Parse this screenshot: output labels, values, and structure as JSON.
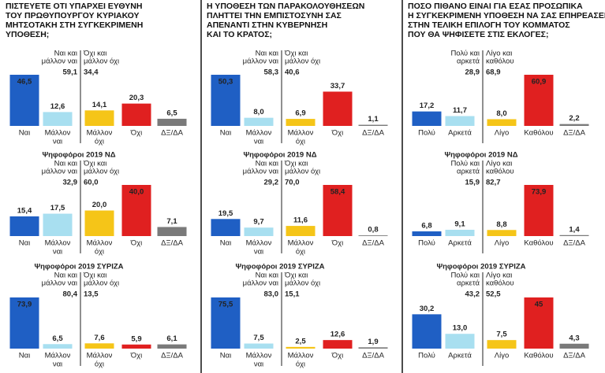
{
  "chart_data": [
    {
      "type": "bar",
      "title": [
        "ΠΙΣΤΕΥΕΤΕ ΟΤΙ ΥΠΑΡΧΕΙ ΕΥΘΥΝΗ",
        "ΤΟΥ ΠΡΩΘΥΠΟΥΡΓΟΥ ΚΥΡΙΑΚΟΥ",
        "ΜΗΤΣΟΤΑΚΗ ΣΤΗ ΣΥΓΚΕΚΡΙΜΕΝΗ",
        "ΥΠΟΘΕΣΗ;"
      ],
      "categories": [
        [
          "Ναι"
        ],
        [
          "Μάλλον",
          "ναι"
        ],
        [
          "Μάλλον",
          "όχι"
        ],
        [
          "Όχι"
        ],
        [
          "ΔΞ/ΔΑ"
        ]
      ],
      "values": [
        46.5,
        12.6,
        14.1,
        20.3,
        6.5
      ],
      "value_labels": [
        "46,5",
        "12,6",
        "14,1",
        "20,3",
        "6,5"
      ],
      "colors": [
        "#1f5fc4",
        "#a8dff0",
        "#f5c518",
        "#e02020",
        "#7a7a7a"
      ],
      "summaries": [
        {
          "label": [
            "Ναι και",
            "μάλλον ναι"
          ],
          "value": 59.1,
          "value_label": "59,1"
        },
        {
          "label": [
            "Όχι και",
            "μάλλον όχι"
          ],
          "value": 34.4,
          "value_label": "34,4"
        }
      ]
    },
    {
      "type": "bar",
      "subtitle": "Ψηφοφόροι 2019 ΝΔ",
      "categories": [
        [
          "Ναι"
        ],
        [
          "Μάλλον",
          "ναι"
        ],
        [
          "Μάλλον",
          "όχι"
        ],
        [
          "Όχι"
        ],
        [
          "ΔΞ/ΔΑ"
        ]
      ],
      "values": [
        15.4,
        17.5,
        20.0,
        40.0,
        7.1
      ],
      "value_labels": [
        "15,4",
        "17,5",
        "20,0",
        "40,0",
        "7,1"
      ],
      "colors": [
        "#1f5fc4",
        "#a8dff0",
        "#f5c518",
        "#e02020",
        "#7a7a7a"
      ],
      "summaries": [
        {
          "label": [
            "Ναι και",
            "μάλλον ναι"
          ],
          "value": 32.9,
          "value_label": "32,9"
        },
        {
          "label": [
            "Όχι και",
            "μάλλον όχι"
          ],
          "value": 60.0,
          "value_label": "60,0"
        }
      ]
    },
    {
      "type": "bar",
      "subtitle": "Ψηφοφόροι 2019 ΣΥΡΙΖΑ",
      "categories": [
        [
          "Ναι"
        ],
        [
          "Μάλλον",
          "ναι"
        ],
        [
          "Μάλλον",
          "όχι"
        ],
        [
          "Όχι"
        ],
        [
          "ΔΞ/ΔΑ"
        ]
      ],
      "values": [
        73.9,
        6.5,
        7.6,
        5.9,
        6.1
      ],
      "value_labels": [
        "73,9",
        "6,5",
        "7,6",
        "5,9",
        "6,1"
      ],
      "colors": [
        "#1f5fc4",
        "#a8dff0",
        "#f5c518",
        "#e02020",
        "#7a7a7a"
      ],
      "summaries": [
        {
          "label": [
            "Ναι και",
            "μάλλον ναι"
          ],
          "value": 80.4,
          "value_label": "80,4"
        },
        {
          "label": [
            "Όχι και",
            "μάλλον όχι"
          ],
          "value": 13.5,
          "value_label": "13,5"
        }
      ]
    },
    {
      "type": "bar",
      "title": [
        "Η ΥΠΟΘΕΣΗ ΤΩΝ ΠΑΡΑΚΟΛΟΥΘΗΣΕΩΝ",
        "ΠΛΗΤΤΕΙ ΤΗΝ ΕΜΠΙΣΤΟΣΥΝΗ ΣΑΣ",
        "ΑΠΕΝΑΝΤΙ ΣΤΗΝ ΚΥΒΕΡΝΗΣΗ",
        "ΚΑΙ ΤΟ ΚΡΑΤΟΣ;"
      ],
      "categories": [
        [
          "Ναι"
        ],
        [
          "Μάλλον",
          "ναι"
        ],
        [
          "Μάλλον",
          "όχι"
        ],
        [
          "Όχι"
        ],
        [
          "ΔΞ/ΔΑ"
        ]
      ],
      "values": [
        50.3,
        8.0,
        6.9,
        33.7,
        1.1
      ],
      "value_labels": [
        "50,3",
        "8,0",
        "6,9",
        "33,7",
        "1,1"
      ],
      "colors": [
        "#1f5fc4",
        "#a8dff0",
        "#f5c518",
        "#e02020",
        "#7a7a7a"
      ],
      "summaries": [
        {
          "label": [
            "Ναι και",
            "μάλλον ναι"
          ],
          "value": 58.3,
          "value_label": "58,3"
        },
        {
          "label": [
            "Όχι και",
            "μάλλον όχι"
          ],
          "value": 40.6,
          "value_label": "40,6"
        }
      ]
    },
    {
      "type": "bar",
      "subtitle": "Ψηφοφόροι 2019 ΝΔ",
      "categories": [
        [
          "Ναι"
        ],
        [
          "Μάλλον",
          "ναι"
        ],
        [
          "Μάλλον",
          "όχι"
        ],
        [
          "Όχι"
        ],
        [
          "ΔΞ/ΔΑ"
        ]
      ],
      "values": [
        19.5,
        9.7,
        11.6,
        58.4,
        0.8
      ],
      "value_labels": [
        "19,5",
        "9,7",
        "11,6",
        "58,4",
        "0,8"
      ],
      "colors": [
        "#1f5fc4",
        "#a8dff0",
        "#f5c518",
        "#e02020",
        "#7a7a7a"
      ],
      "summaries": [
        {
          "label": [
            "Ναι και",
            "μάλλον ναι"
          ],
          "value": 29.2,
          "value_label": "29,2"
        },
        {
          "label": [
            "Όχι και",
            "μάλλον όχι"
          ],
          "value": 70.0,
          "value_label": "70,0"
        }
      ]
    },
    {
      "type": "bar",
      "subtitle": "Ψηφοφόροι 2019 ΣΥΡΙΖΑ",
      "categories": [
        [
          "Ναι"
        ],
        [
          "Μάλλον",
          "ναι"
        ],
        [
          "Μάλλον",
          "όχι"
        ],
        [
          "Όχι"
        ],
        [
          "ΔΞ/ΔΑ"
        ]
      ],
      "values": [
        75.5,
        7.5,
        2.5,
        12.6,
        1.9
      ],
      "value_labels": [
        "75,5",
        "7,5",
        "2,5",
        "12,6",
        "1,9"
      ],
      "colors": [
        "#1f5fc4",
        "#a8dff0",
        "#f5c518",
        "#e02020",
        "#7a7a7a"
      ],
      "summaries": [
        {
          "label": [
            "Ναι και",
            "μάλλον ναι"
          ],
          "value": 83.0,
          "value_label": "83,0"
        },
        {
          "label": [
            "Όχι και",
            "μάλλον όχι"
          ],
          "value": 15.1,
          "value_label": "15,1"
        }
      ]
    },
    {
      "type": "bar",
      "title": [
        "ΠΟΣΟ ΠΙΘΑΝΟ ΕΙΝΑΙ ΓΙΑ ΕΣΑΣ ΠΡΟΣΩΠΙΚΑ",
        "Η ΣΥΓΚΕΚΡΙΜΕΝΗ ΥΠΟΘΕΣΗ ΝΑ ΣΑΣ ΕΠΗΡΕΑΣΕΙ",
        "ΣΤΗΝ ΤΕΛΙΚΗ ΕΠΙΛΟΓΗ ΤΟΥ ΚΟΜΜΑΤΟΣ",
        "ΠΟΥ ΘΑ ΨΗΦΙΣΕΤΕ ΣΤΙΣ ΕΚΛΟΓΕΣ;"
      ],
      "categories": [
        [
          "Πολύ"
        ],
        [
          "Αρκετά"
        ],
        [
          "Λίγο"
        ],
        [
          "Καθόλου"
        ],
        [
          "ΔΞ/ΔΑ"
        ]
      ],
      "values": [
        17.2,
        11.7,
        8.0,
        60.9,
        2.2
      ],
      "value_labels": [
        "17,2",
        "11,7",
        "8,0",
        "60,9",
        "2,2"
      ],
      "colors": [
        "#1f5fc4",
        "#a8dff0",
        "#f5c518",
        "#e02020",
        "#7a7a7a"
      ],
      "summaries": [
        {
          "label": [
            "Πολύ και",
            "αρκετά"
          ],
          "value": 28.9,
          "value_label": "28,9"
        },
        {
          "label": [
            "Λίγο και",
            "καθόλου"
          ],
          "value": 68.9,
          "value_label": "68,9"
        }
      ]
    },
    {
      "type": "bar",
      "subtitle": "Ψηφοφόροι 2019 ΝΔ",
      "categories": [
        [
          "Πολύ"
        ],
        [
          "Αρκετά"
        ],
        [
          "Λίγο"
        ],
        [
          "Καθόλου"
        ],
        [
          "ΔΞ/ΔΑ"
        ]
      ],
      "values": [
        6.8,
        9.1,
        8.8,
        73.9,
        1.4
      ],
      "value_labels": [
        "6,8",
        "9,1",
        "8,8",
        "73,9",
        "1,4"
      ],
      "colors": [
        "#1f5fc4",
        "#a8dff0",
        "#f5c518",
        "#e02020",
        "#7a7a7a"
      ],
      "summaries": [
        {
          "label": [
            "Πολύ και",
            "αρκετά"
          ],
          "value": 15.9,
          "value_label": "15,9"
        },
        {
          "label": [
            "Λίγο και",
            "καθόλου"
          ],
          "value": 82.7,
          "value_label": "82,7"
        }
      ]
    },
    {
      "type": "bar",
      "subtitle": "Ψηφοφόροι 2019 ΣΥΡΙΖΑ",
      "categories": [
        [
          "Πολύ"
        ],
        [
          "Αρκετά"
        ],
        [
          "Λίγο"
        ],
        [
          "Καθόλου"
        ],
        [
          "ΔΞ/ΔΑ"
        ]
      ],
      "values": [
        30.2,
        13.0,
        7.5,
        45,
        4.3
      ],
      "value_labels": [
        "30,2",
        "13,0",
        "7,5",
        "45",
        "4,3"
      ],
      "colors": [
        "#1f5fc4",
        "#a8dff0",
        "#f5c518",
        "#e02020",
        "#7a7a7a"
      ],
      "summaries": [
        {
          "label": [
            "Πολύ και",
            "αρκετά"
          ],
          "value": 43.2,
          "value_label": "43,2"
        },
        {
          "label": [
            "Λίγο και",
            "καθόλου"
          ],
          "value": 52.5,
          "value_label": "52,5"
        }
      ]
    }
  ]
}
